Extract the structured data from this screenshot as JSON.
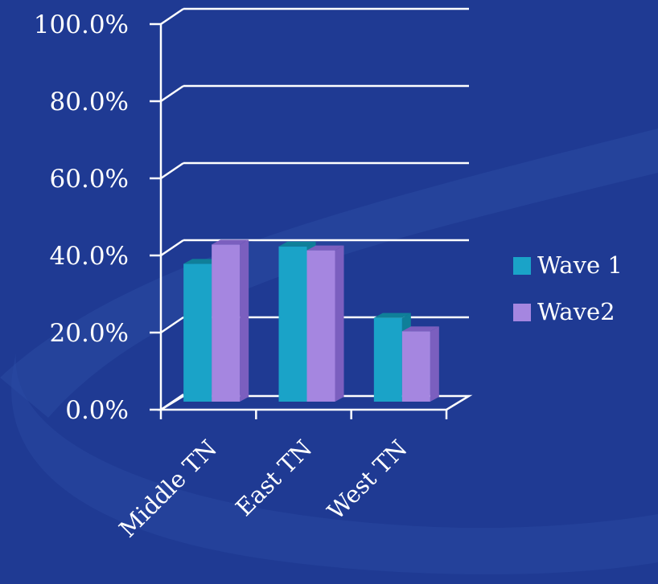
{
  "chart_data": {
    "type": "bar",
    "categories": [
      "Middle TN",
      "East TN",
      "West TN"
    ],
    "series": [
      {
        "name": "Wave 1",
        "values": [
          37.0,
          41.5,
          23.0
        ],
        "color": "#1aa3c8",
        "top_color": "#0f7f99"
      },
      {
        "name": "Wave2",
        "values": [
          42.0,
          40.5,
          19.5
        ],
        "color": "#a586e0",
        "top_color": "#7b5fbf"
      }
    ],
    "ylim": [
      0,
      100
    ],
    "yticks": [
      "0.0%",
      "20.0%",
      "40.0%",
      "60.0%",
      "80.0%",
      "100.0%"
    ],
    "ytick_values": [
      0,
      20,
      40,
      60,
      80,
      100
    ],
    "grid": true,
    "legend_position": "right",
    "three_d": true
  },
  "colors": {
    "background": "#1f3a93",
    "swoosh": "#2a4ba3",
    "grid": "#ffffff"
  }
}
